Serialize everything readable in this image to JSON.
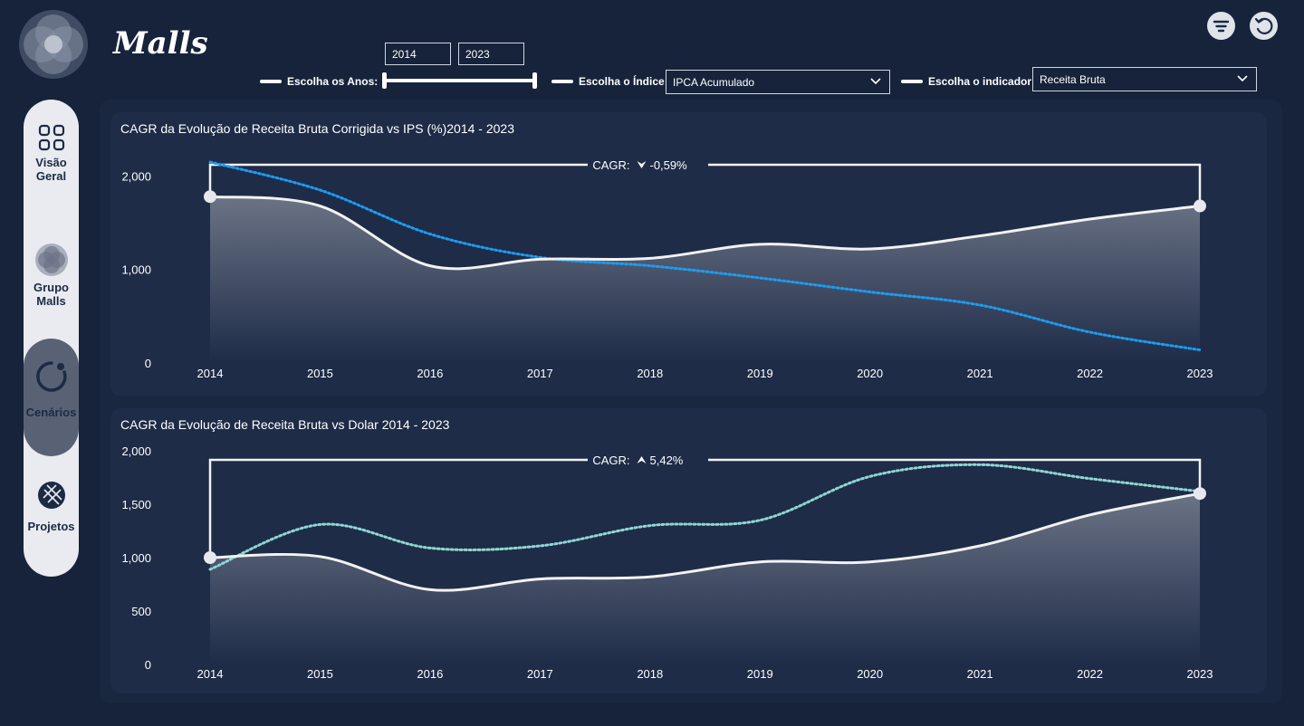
{
  "app": {
    "title": "Malls"
  },
  "nav": {
    "items": [
      {
        "label_1": "Visão",
        "label_2": "Geral",
        "icon": "grid-icon"
      },
      {
        "label_1": "Grupo",
        "label_2": "Malls",
        "icon": "group-logo-icon"
      },
      {
        "label_1": "Cenários",
        "label_2": "",
        "icon": "scenario-icon"
      },
      {
        "label_1": "Projetos",
        "label_2": "",
        "icon": "globe-icon"
      }
    ]
  },
  "header": {
    "icons": [
      "filter-icon",
      "reset-icon"
    ]
  },
  "filters": {
    "years_label": "Escolha os Anos:",
    "year_from": "2014",
    "year_to": "2023",
    "index_label": "Escolha o Índice:",
    "index_value": "IPCA Acumulado",
    "indicator_label": "Escolha o indicador:",
    "indicator_value": "Receita Bruta"
  },
  "colors": {
    "background": "#16233a",
    "card": "#1e2c48",
    "line": "#f2f2f2",
    "ips_line": "#1e9bf0",
    "dolar_line": "#8fd6d2"
  },
  "chart_data": [
    {
      "type": "line",
      "title": "CAGR da Evolução de Receita Bruta Corrigida vs IPS (%)2014 - 2023",
      "x": [
        "2014",
        "2015",
        "2016",
        "2017",
        "2018",
        "2019",
        "2020",
        "2021",
        "2022",
        "2023"
      ],
      "y_ticks": [
        "0",
        "1,000",
        "2,000"
      ],
      "ylim": [
        0,
        2150
      ],
      "cagr_label": "CAGR:",
      "cagr_value": "-0,59%",
      "cagr_direction": "down",
      "series": [
        {
          "values": [
            1780,
            1680,
            1040,
            1110,
            1120,
            1270,
            1220,
            1360,
            1540,
            1680
          ]
        },
        {
          "values": [
            2150,
            1850,
            1380,
            1130,
            1040,
            910,
            760,
            620,
            330,
            140
          ]
        }
      ]
    },
    {
      "type": "line",
      "title": "CAGR da Evolução de Receita Bruta vs Dolar 2014 - 2023",
      "x": [
        "2014",
        "2015",
        "2016",
        "2017",
        "2018",
        "2019",
        "2020",
        "2021",
        "2022",
        "2023"
      ],
      "y_ticks": [
        "0",
        "500",
        "1,000",
        "1,500",
        "2,000"
      ],
      "ylim": [
        0,
        2000
      ],
      "cagr_label": "CAGR:",
      "cagr_value": "5,42%",
      "cagr_direction": "up",
      "series": [
        {
          "values": [
            1000,
            1010,
            700,
            800,
            820,
            960,
            960,
            1110,
            1400,
            1600
          ]
        },
        {
          "values": [
            890,
            1310,
            1090,
            1110,
            1300,
            1350,
            1760,
            1870,
            1740,
            1620
          ]
        }
      ]
    }
  ]
}
